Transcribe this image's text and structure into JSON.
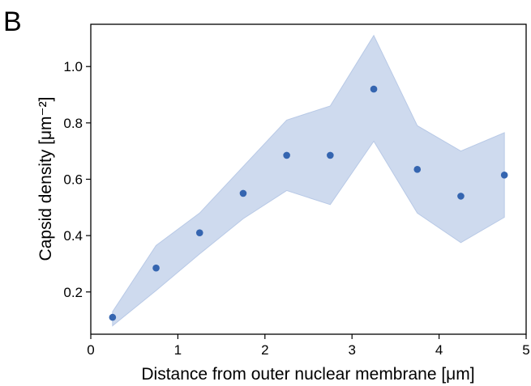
{
  "panel_label": "B",
  "chart_data": {
    "type": "scatter",
    "title": "",
    "xlabel": "Distance from outer nuclear membrane [μm]",
    "ylabel": "Capsid density [μm⁻²]",
    "xlim": [
      0,
      5
    ],
    "ylim": [
      0.05,
      1.15
    ],
    "x_ticks": [
      0,
      1,
      2,
      3,
      4,
      5
    ],
    "x_tick_labels": [
      "0",
      "1",
      "2",
      "3",
      "4",
      "5"
    ],
    "y_ticks": [
      0.2,
      0.4,
      0.6,
      0.8,
      1.0
    ],
    "y_tick_labels": [
      "0.2",
      "0.4",
      "0.6",
      "0.8",
      "1.0"
    ],
    "grid": false,
    "legend": "none",
    "x": [
      0.25,
      0.75,
      1.25,
      1.75,
      2.25,
      2.75,
      3.25,
      3.75,
      4.25,
      4.75
    ],
    "series": [
      {
        "values": [
          0.11,
          0.285,
          0.41,
          0.55,
          0.685,
          0.685,
          0.92,
          0.635,
          0.54,
          0.615
        ],
        "band_upper": [
          0.13,
          0.365,
          0.48,
          0.645,
          0.81,
          0.86,
          1.11,
          0.79,
          0.7,
          0.765
        ],
        "band_lower": [
          0.08,
          0.205,
          0.335,
          0.46,
          0.56,
          0.51,
          0.735,
          0.48,
          0.375,
          0.465
        ],
        "color": "#3565b0",
        "band_color": "#c9d6ec"
      }
    ]
  }
}
